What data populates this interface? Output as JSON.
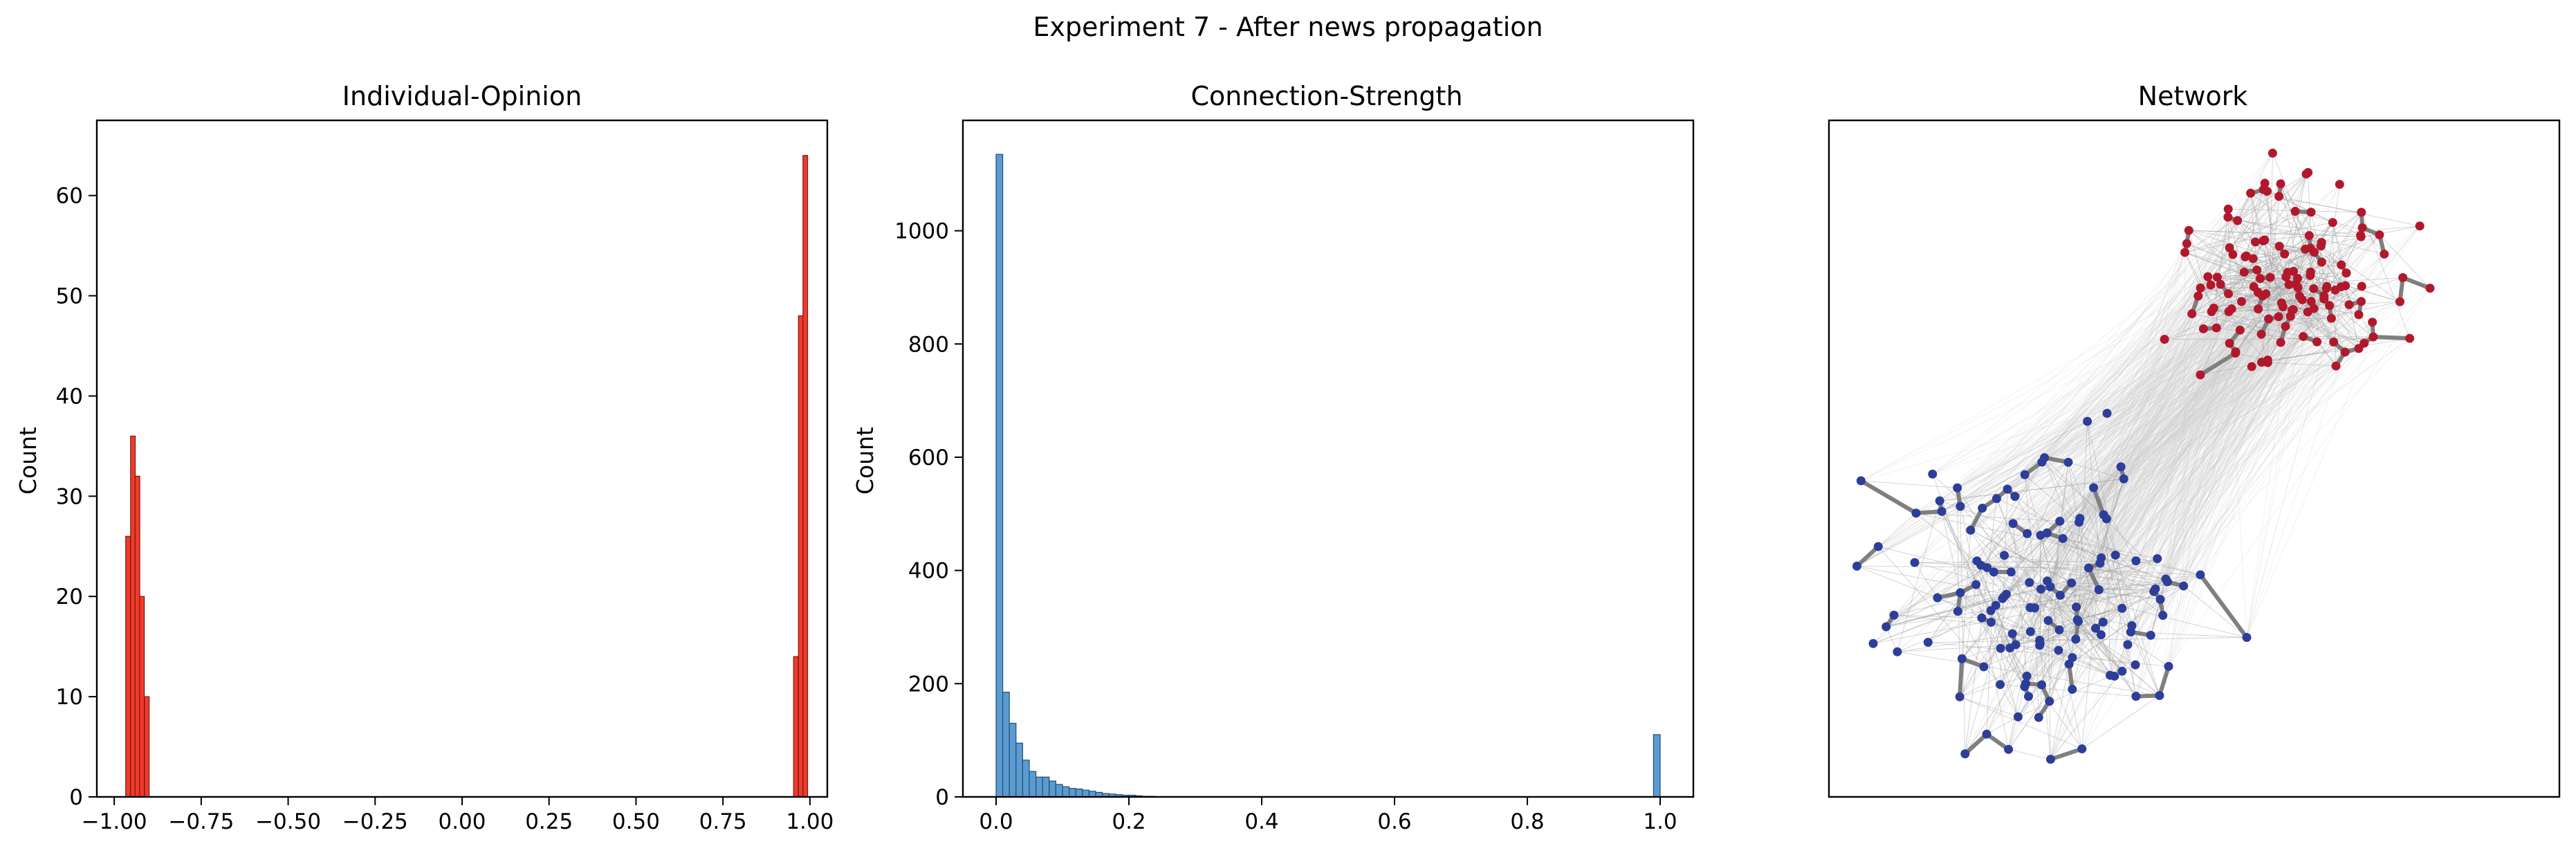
{
  "figure": {
    "suptitle": "Experiment 7 - After news propagation"
  },
  "colors": {
    "opinion_bar": "#ef3b2c",
    "opinion_edge": "#7a1a10",
    "strength_bar": "#5b9bd0",
    "strength_edge": "#1f4e79",
    "node_positive": "#b2182b",
    "node_negative": "#2c3e99",
    "edge_strong": "#7f7f7f",
    "edge_weak": "#cfcfcf"
  },
  "chart_data": [
    {
      "type": "bar",
      "title": "Individual-Opinion",
      "xlabel": "",
      "ylabel": "Count",
      "xlim": [
        -1.05,
        1.05
      ],
      "ylim": [
        0,
        67.5
      ],
      "xticks": [
        -1.0,
        -0.75,
        -0.5,
        -0.25,
        0.0,
        0.25,
        0.5,
        0.75,
        1.0
      ],
      "xtick_labels": [
        "−1.00",
        "−0.75",
        "−0.50",
        "−0.25",
        "0.00",
        "0.25",
        "0.50",
        "0.75",
        "1.00"
      ],
      "yticks": [
        0,
        10,
        20,
        30,
        40,
        50,
        60
      ],
      "ytick_labels": [
        "0",
        "10",
        "20",
        "30",
        "40",
        "50",
        "60"
      ],
      "bin_width": 0.0134,
      "bins": [
        {
          "x": -0.967,
          "count": 26
        },
        {
          "x": -0.953,
          "count": 36
        },
        {
          "x": -0.94,
          "count": 32
        },
        {
          "x": -0.927,
          "count": 20
        },
        {
          "x": -0.913,
          "count": 10
        },
        {
          "x": 0.953,
          "count": 14
        },
        {
          "x": 0.967,
          "count": 48
        },
        {
          "x": 0.98,
          "count": 64
        }
      ],
      "grid": false
    },
    {
      "type": "bar",
      "title": "Connection-Strength",
      "xlabel": "",
      "ylabel": "Count",
      "xlim": [
        -0.05,
        1.05
      ],
      "ylim": [
        0,
        1195
      ],
      "xticks": [
        0.0,
        0.2,
        0.4,
        0.6,
        0.8,
        1.0
      ],
      "xtick_labels": [
        "0.0",
        "0.2",
        "0.4",
        "0.6",
        "0.8",
        "1.0"
      ],
      "yticks": [
        0,
        200,
        400,
        600,
        800,
        1000
      ],
      "ytick_labels": [
        "0",
        "200",
        "400",
        "600",
        "800",
        "1000"
      ],
      "bin_width": 0.01,
      "bins": [
        {
          "x": 0.0,
          "count": 1135
        },
        {
          "x": 0.01,
          "count": 185
        },
        {
          "x": 0.02,
          "count": 130
        },
        {
          "x": 0.03,
          "count": 95
        },
        {
          "x": 0.04,
          "count": 65
        },
        {
          "x": 0.05,
          "count": 45
        },
        {
          "x": 0.06,
          "count": 35
        },
        {
          "x": 0.07,
          "count": 35
        },
        {
          "x": 0.08,
          "count": 28
        },
        {
          "x": 0.09,
          "count": 22
        },
        {
          "x": 0.1,
          "count": 18
        },
        {
          "x": 0.11,
          "count": 15
        },
        {
          "x": 0.12,
          "count": 14
        },
        {
          "x": 0.13,
          "count": 12
        },
        {
          "x": 0.14,
          "count": 10
        },
        {
          "x": 0.15,
          "count": 8
        },
        {
          "x": 0.16,
          "count": 6
        },
        {
          "x": 0.17,
          "count": 5
        },
        {
          "x": 0.18,
          "count": 4
        },
        {
          "x": 0.19,
          "count": 3
        },
        {
          "x": 0.2,
          "count": 3
        },
        {
          "x": 0.21,
          "count": 2
        },
        {
          "x": 0.22,
          "count": 1
        },
        {
          "x": 0.23,
          "count": 1
        },
        {
          "x": 0.99,
          "count": 110
        }
      ],
      "grid": false
    },
    {
      "type": "network",
      "title": "Network",
      "axes_visible": false,
      "communities": [
        {
          "color_key": "node_positive",
          "node_count": 130
        },
        {
          "color_key": "node_negative",
          "node_count": 130
        }
      ]
    }
  ]
}
